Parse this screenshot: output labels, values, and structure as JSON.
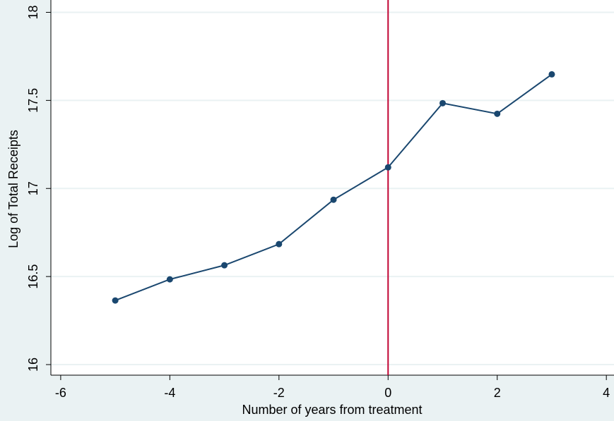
{
  "chart_data": {
    "type": "line",
    "x_label": "Number of years from treatment",
    "y_label": "Log of Total Receipts",
    "x": [
      -5,
      -4,
      -3,
      -2,
      -1,
      0,
      1,
      2,
      3
    ],
    "series": [
      {
        "color": "#1a476f",
        "values": [
          16.364,
          16.484,
          16.564,
          16.684,
          16.936,
          17.12,
          17.484,
          17.424,
          17.648
        ]
      }
    ],
    "xlim": [
      -6.18,
      4.14
    ],
    "xticks": [
      -6,
      -4,
      -2,
      0,
      2,
      4
    ],
    "ylim": [
      15.94,
      18.07
    ],
    "yticks": [
      16,
      16.5,
      17,
      17.5,
      18
    ],
    "grid": true,
    "vline": 0,
    "vline_color": "#c10534"
  }
}
